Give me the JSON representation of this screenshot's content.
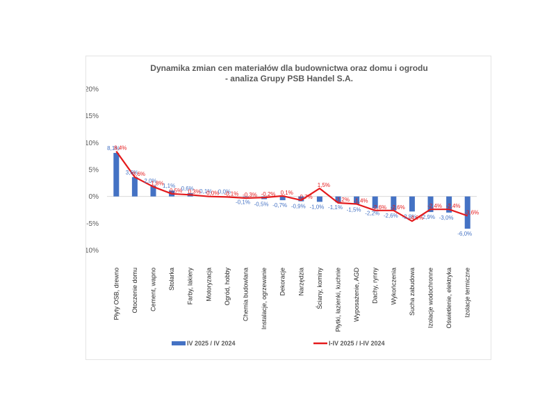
{
  "chart_data": {
    "type": "bar",
    "title_lines": [
      "Dynamika zmian cen materiałów dla budownictwa oraz domu i ogrodu",
      "- analiza Grupy PSB Handel S.A."
    ],
    "categories": [
      "Płyty OSB, drewno",
      "Otoczenie domu",
      "Cement, wapno",
      "Stolarka",
      "Farby, lakiery",
      "Motoryzacja",
      "Ogród, hobby",
      "Chemia budowlana",
      "Instalacje, ogrzewanie",
      "Dekoracje",
      "Narzędzia",
      "Ściany, kominy",
      "Płytki, łazienki, kuchnie",
      "Wyposażenie, AGD",
      "Dachy, rynny",
      "Wykończenia",
      "Sucha zabudowa",
      "Izolacje wodochronne",
      "Oświetlenie, elektryka",
      "Izolacje termiczne"
    ],
    "series": [
      {
        "name": "IV 2025 / IV 2024",
        "type": "bar",
        "color": "#4472C4",
        "values": [
          8.1,
          3.6,
          2.0,
          1.1,
          0.6,
          0.1,
          0.0,
          -0.1,
          -0.5,
          -0.7,
          -0.9,
          -1.0,
          -1.1,
          -1.5,
          -2.2,
          -2.6,
          -2.8,
          -2.9,
          -3.0,
          -6.0
        ],
        "labels": [
          "8,1%",
          "3,6%",
          "2,0%",
          "1,1%",
          "0,6%",
          "0,1%",
          "0,0%",
          "-0,1%",
          "-0,5%",
          "-0,7%",
          "-0,9%",
          "-1,0%",
          "-1,1%",
          "-1,5%",
          "-2,2%",
          "-2,6%",
          "-2,8%",
          "-2,9%",
          "-3,0%",
          "-6,0%"
        ]
      },
      {
        "name": "I-IV 2025 / I-IV 2024",
        "type": "line",
        "color": "#E41A1C",
        "values": [
          8.4,
          3.6,
          1.8,
          0.5,
          0.3,
          0.0,
          -0.1,
          -0.3,
          -0.2,
          0.1,
          -0.7,
          1.5,
          -1.2,
          -1.4,
          -2.6,
          -2.6,
          -4.6,
          -2.4,
          -2.4,
          -3.6
        ],
        "labels": [
          "8,4%",
          "3,6%",
          "1,8%",
          "0,5%",
          "0,3%",
          "0,0%",
          "-0,1%",
          "-0,3%",
          "-0,2%",
          "0,1%",
          "-0,7%",
          "1,5%",
          "-1,2%",
          "-1,4%",
          "-2,6%",
          "-2,6%",
          "-4,6%",
          "-2,4%",
          "-2,4%",
          "-3,6%"
        ]
      }
    ],
    "ylim": [
      -10,
      20
    ],
    "yticks": [
      -10,
      -5,
      0,
      5,
      10,
      15,
      20
    ],
    "ytick_labels": [
      "-10%",
      "-5%",
      "0%",
      "5%",
      "10%",
      "15%",
      "20%"
    ],
    "xlabel": "",
    "ylabel": "",
    "grid": false,
    "legend_position": "bottom"
  }
}
